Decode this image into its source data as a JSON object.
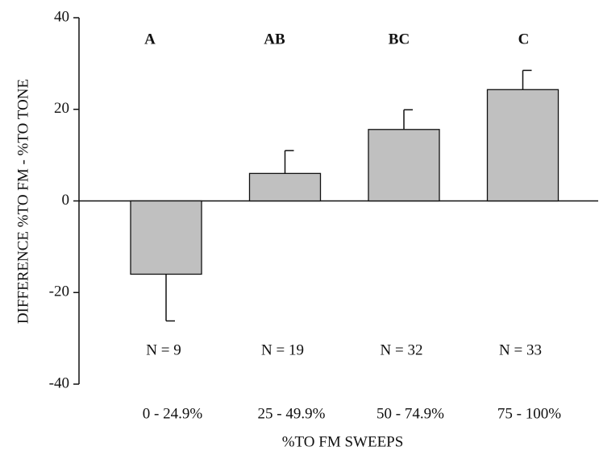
{
  "chart_data": {
    "type": "bar",
    "categories": [
      "0 - 24.9%",
      "25 - 49.9%",
      "50 - 74.9%",
      "75 - 100%"
    ],
    "values": [
      -16.0,
      6.0,
      15.6,
      24.3
    ],
    "errors": [
      10.2,
      5.0,
      4.3,
      4.2
    ],
    "color": "#c0c0c0",
    "group_labels": [
      "A",
      "AB",
      "BC",
      "C"
    ],
    "n_labels": [
      "N = 9",
      "N = 19",
      "N = 32",
      "N = 33"
    ],
    "x_label": "%TO FM SWEEPS",
    "y_label": "DIFFERENCE %TO FM  - %TO TONE",
    "ylim": [
      -40,
      40
    ],
    "yticks": [
      -40,
      -20,
      0,
      20,
      40
    ]
  }
}
